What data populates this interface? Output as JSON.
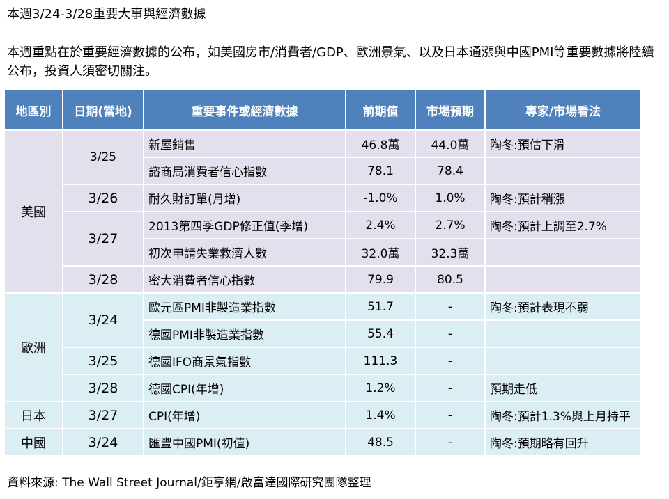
{
  "title": "本週3/24-3/28重要大事與經濟數據",
  "intro": "本週重點在於重要經濟數據的公布，如美國房市/消費者/GDP、歐洲景氣、以及日本通漲與中國PMI等重要數據將陸續公布，投資人須密切關注。",
  "table": {
    "headers": [
      "地區別",
      "日期(當地)",
      "重要事件或經濟數據",
      "前期值",
      "市場預期",
      "專家/市場看法"
    ],
    "regions": {
      "us": "美國",
      "eu": "歐洲",
      "jp": "日本",
      "cn": "中國"
    },
    "dates": {
      "us_325": "3/25",
      "us_326": "3/26",
      "us_327": "3/27",
      "us_328": "3/28",
      "eu_324": "3/24",
      "eu_325": "3/25",
      "eu_328": "3/28",
      "jp_327": "3/27",
      "cn_324": "3/24"
    },
    "rows": [
      {
        "event": "新屋銷售",
        "prev": "46.8萬",
        "forecast": "44.0萬",
        "view": "陶冬:預估下滑"
      },
      {
        "event": "諮商局消費者信心指數",
        "prev": "78.1",
        "forecast": "78.4",
        "view": ""
      },
      {
        "event": "耐久財訂單(月增)",
        "prev": "-1.0%",
        "forecast": "1.0%",
        "view": "陶冬:預計稍漲"
      },
      {
        "event": "2013第四季GDP修正值(季增)",
        "prev": "2.4%",
        "forecast": "2.7%",
        "view": "陶冬:預計上調至2.7%"
      },
      {
        "event": "初次申請失業救濟人數",
        "prev": "32.0萬",
        "forecast": "32.3萬",
        "view": ""
      },
      {
        "event": "密大消費者信心指數",
        "prev": "79.9",
        "forecast": "80.5",
        "view": ""
      },
      {
        "event": "歐元區PMI非製造業指數",
        "prev": "51.7",
        "forecast": "-",
        "view": "陶冬:預計表現不弱"
      },
      {
        "event": "德國PMI非製造業指數",
        "prev": "55.4",
        "forecast": "-",
        "view": ""
      },
      {
        "event": "德國IFO商景氣指數",
        "prev": "111.3",
        "forecast": "-",
        "view": ""
      },
      {
        "event": "德國CPI(年增)",
        "prev": "1.2%",
        "forecast": "-",
        "view": "預期走低"
      },
      {
        "event": "CPI(年增)",
        "prev": "1.4%",
        "forecast": "-",
        "view": "陶冬:預計1.3%與上月持平"
      },
      {
        "event": "匯豐中國PMI(初值)",
        "prev": "48.5",
        "forecast": "-",
        "view": "陶冬:預期略有回升"
      }
    ]
  },
  "source": "資料來源: The Wall Street Journal/鉅亨網/啟富達國際研究團隊整理"
}
